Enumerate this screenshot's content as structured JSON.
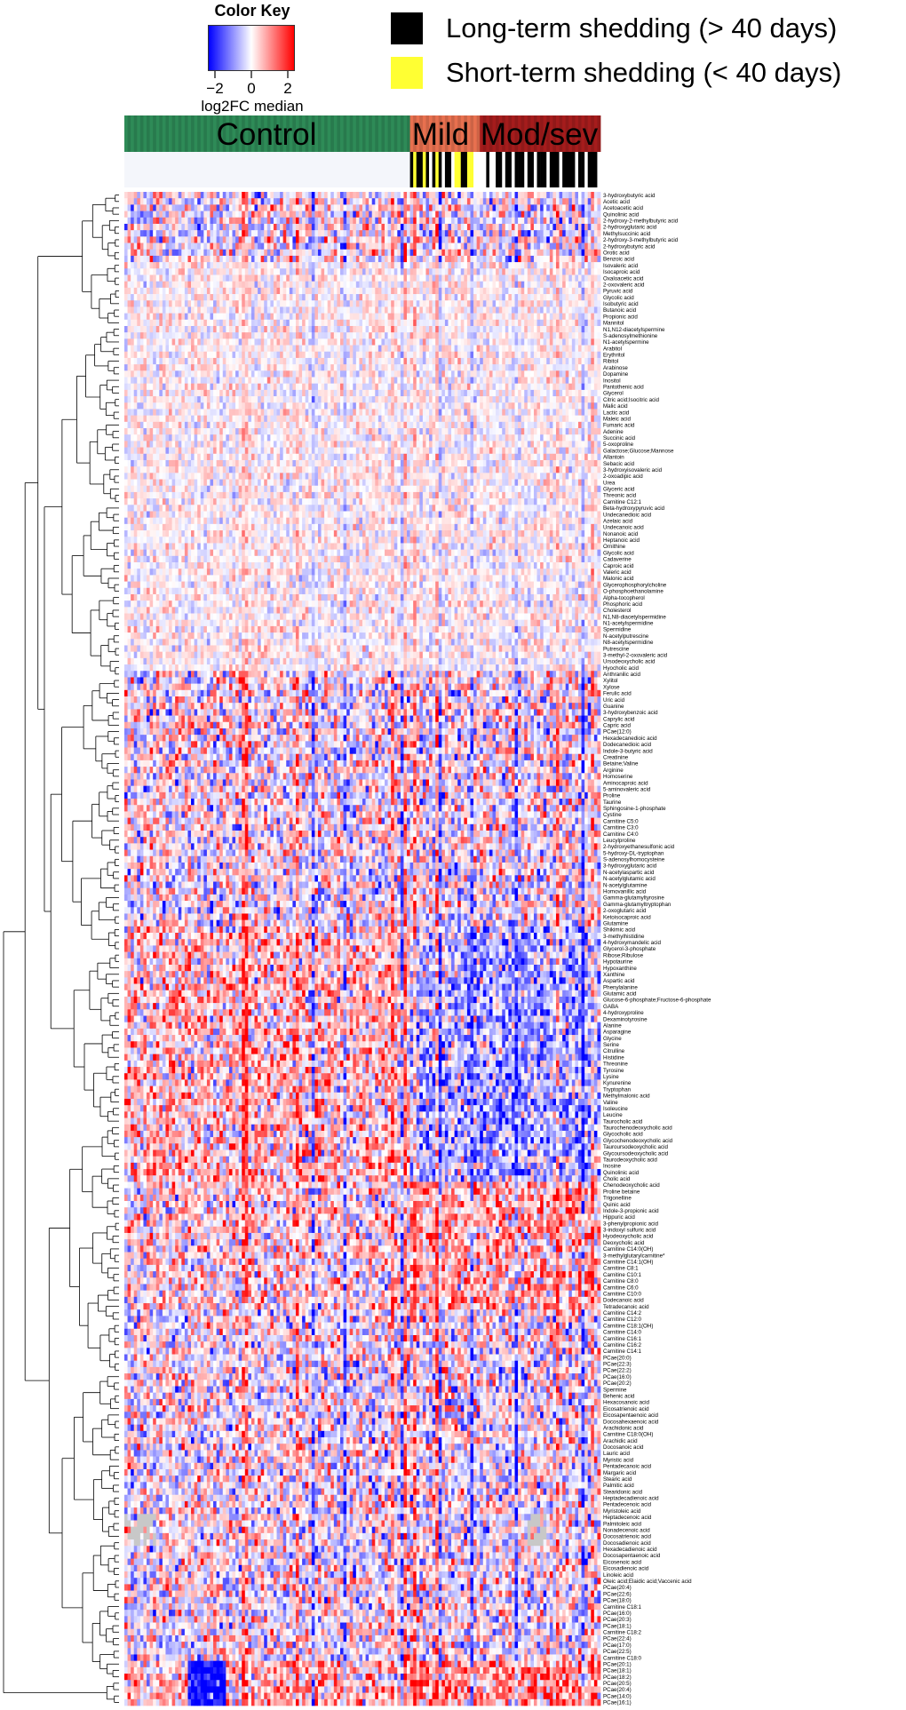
{
  "color_key": {
    "title": "Color Key",
    "ticks": [
      "−2",
      "0",
      "2"
    ],
    "label": "log2FC median",
    "low_color": "#0000ff",
    "mid_color": "#ffffff",
    "high_color": "#ff0000"
  },
  "legend": [
    {
      "label": "Long-term shedding (> 40 days)",
      "color": "#000000"
    },
    {
      "label": "Short-term shedding (< 40 days)",
      "color": "#ffff33"
    }
  ],
  "groups": [
    {
      "label": "Control",
      "color": "#2e8b57",
      "columns": 90
    },
    {
      "label": "Mild",
      "color": "#e8704f",
      "columns": 22
    },
    {
      "label": "Mod/sev",
      "color": "#a51c1c",
      "columns": 38
    }
  ],
  "chart_data": {
    "type": "heatmap",
    "color_scale": {
      "min": -2,
      "max": 2,
      "label": "log2FC median"
    },
    "columns_per_group": {
      "Control": 90,
      "Mild": 22,
      "Mod/sev": 38
    },
    "row_labels": [
      "3-hydroxybutyric acid",
      "Acetic acid",
      "Acetoacetic acid",
      "Quinolinic acid",
      "2-hydroxy-2-methylbutyric acid",
      "2-hydroxyglutaric acid",
      "Methylsuccinic acid",
      "2-hydroxy-3-methylbutyric acid",
      "2-hydroxybutyric acid",
      "Orotic acid",
      "Benzoic acid",
      "Isovaleric acid",
      "Isocaproic acid",
      "Oxaloacetic acid",
      "2-oxovaleric acid",
      "Pyruvic acid",
      "Glycolic acid",
      "Isobutyric acid",
      "Butanoic acid",
      "Propionic acid",
      "Mannitol",
      "N1,N12-diacetylspermine",
      "S-adenosylmethionine",
      "N1-acetylspermine",
      "Arabitol",
      "Erythritol",
      "Ribitol",
      "Arabinose",
      "Dopamine",
      "Inositol",
      "Pantothenic acid",
      "Glycerol",
      "Citric acid;Isocitric acid",
      "Malic acid",
      "Lactic acid",
      "Maleic acid",
      "Fumaric acid",
      "Adenine",
      "Succinic acid",
      "5-oxoproline",
      "Galactose;Glucose;Mannose",
      "Allantoin",
      "Sebacic acid",
      "3-hydroxyisovaleric acid",
      "2-oxoadipic acid",
      "Urea",
      "Glyceric acid",
      "Threonic acid",
      "Carnitine C12:1",
      "Beta-hydroxypyruvic acid",
      "Undecanedioic acid",
      "Azelaic acid",
      "Undecanoic acid",
      "Nonanoic acid",
      "Heptanoic acid",
      "Ornithine",
      "Glycolic acid",
      "Cadaverine",
      "Caproic acid",
      "Valeric acid",
      "Malonic acid",
      "Glycerophosphorylcholine",
      "O-phosphoethanolamine",
      "Alpha-tocopherol",
      "Phosphoric acid",
      "Cholesterol",
      "N1,N8-diacetylspermidine",
      "N1-acetylspermidine",
      "Spermidine",
      "N-acetylputrescine",
      "N8-acetylspermidine",
      "Putrescine",
      "3-methyl-2-oxovaleric acid",
      "Ursodeoxycholic acid",
      "Hyocholic acid",
      "Anthranilic acid",
      "Xylitol",
      "Xylose",
      "Ferulic acid",
      "Uric acid",
      "Guanine",
      "3-hydroxybenzoic acid",
      "Caprylic acid",
      "Capric acid",
      "PCae(12:0)",
      "Hexadecanedioic acid",
      "Dodecanedioic acid",
      "Indole-3-butyric acid",
      "Creatinine",
      "Betaine;Valine",
      "Arginine",
      "Homoserine",
      "Aminocaproic acid",
      "5-aminovaleric acid",
      "Proline",
      "Taurine",
      "Sphingosine-1-phosphate",
      "Cystine",
      "Carnitine C5:0",
      "Carnitine C3:0",
      "Carnitine C4:0",
      "Leucylproline",
      "2-hydroxyethanesulfonic acid",
      "5-hydroxy-DL-tryptophan",
      "S-adenosylhomocysteine",
      "3-hydroxyglutaric acid",
      "N-acetylaspartic acid",
      "N-acetylglutamic acid",
      "N-acetylglutamine",
      "Homovanillic acid",
      "Gamma-glutamyltyrosine",
      "Gamma-glutamyltryptophan",
      "2-oxoglutaric acid",
      "Ketoisocaproic acid",
      "Glutamine",
      "Shikimic acid",
      "3-methylhistidine",
      "4-hydroxymandelic acid",
      "Glycerol-3-phosphate",
      "Ribose;Ribulose",
      "Hypotaurine",
      "Hypoxanthine",
      "Xanthine",
      "Aspartic acid",
      "Phenylalanine",
      "Glutamic acid",
      "Glucose-6-phosphate;Fructose-6-phosphate",
      "GABA",
      "4-hydroxyproline",
      "Dexaminotyrosine",
      "Alanine",
      "Asparagine",
      "Glycine",
      "Serine",
      "Citrulline",
      "Histidine",
      "Threonine",
      "Tyrosine",
      "Lysine",
      "Kynurenine",
      "Tryptophan",
      "Methylmalonic acid",
      "Valine",
      "Isoleucine",
      "Leucine",
      "Taurocholic acid",
      "Taurochenodeoxycholic acid",
      "Glycocholic acid",
      "Glycochenodeoxycholic acid",
      "Tauroursodeoxycholic acid",
      "Glycoursodeoxycholic acid",
      "Taurodeoxycholic acid",
      "Inosine",
      "Quinolinic acid",
      "Cholic acid",
      "Chenodeoxycholic acid",
      "Proline betaine",
      "Trigonelline",
      "Quinic acid",
      "Indole-3-propionic acid",
      "Hippuric acid",
      "3-phenylpropionic acid",
      "3-indoxyl sulfuric acid",
      "Hyodeoxycholic acid",
      "Deoxycholic acid",
      "Carnitine C14:0(OH)",
      "3-methylglutarylcarnitine*",
      "Carnitine C14:1(OH)",
      "Carnitine C8:1",
      "Carnitine C10:1",
      "Carnitine C8:0",
      "Carnitine C6:0",
      "Carnitine C10:0",
      "Dodecanoic acid",
      "Tetradecanoic acid",
      "Carnitine C14:2",
      "Carnitine C12:0",
      "Carnitine C18:1(OH)",
      "Carnitine C14:0",
      "Carnitine C16:1",
      "Carnitine C16:2",
      "Carnitine C14:1",
      "PCae(20:0)",
      "PCae(22:3)",
      "PCae(22:2)",
      "PCae(16:0)",
      "PCae(20:2)",
      "Spermine",
      "Behenic acid",
      "Hexacosanoic acid",
      "Eicosatrienoic acid",
      "Eicosapentaenoic acid",
      "Docosahexaenoic acid",
      "Arachidonic acid",
      "Carnitine C18:0(OH)",
      "Arachidic acid",
      "Docosanoic acid",
      "Lauric acid",
      "Myristic acid",
      "Pentadecanoic acid",
      "Margaric acid",
      "Stearic acid",
      "Palmitic acid",
      "Stearidonic acid",
      "Heptadecadienoic acid",
      "Pentadecenoic acid",
      "Myristoleic acid",
      "Heptadecenoic acid",
      "Palmitoleic acid",
      "Nonadecenoic acid",
      "Docosatrienoic acid",
      "Docosadienoic acid",
      "Hexadecadienoic acid",
      "Docosapentaenoic acid",
      "Eicosenoic acid",
      "Eicosadienoic acid",
      "Linoleic acid",
      "Oleic acid;Elaidic acid;Vaccenic acid",
      "PCae(20:4)",
      "PCae(22:6)",
      "PCae(18:0)",
      "Carnitine C18:1",
      "PCae(16:0)",
      "PCae(20:3)",
      "PCae(18:1)",
      "Carnitine C18:2",
      "PCae(22:4)",
      "PCae(17:0)",
      "PCae(22:5)",
      "Carnitine C18:0",
      "PCae(20:1)",
      "PCae(18:1)",
      "PCae(18:2)",
      "PCae(20:5)",
      "PCae(20:4)",
      "PCae(14:0)",
      "PCae(16:1)"
    ],
    "column_shedding": {
      "Mild": [
        "black",
        "yellow",
        "black",
        "black",
        "yellow",
        "black",
        "white",
        "black",
        "yellow",
        "black",
        "white",
        "black",
        "black",
        "white",
        "yellow",
        "yellow",
        "black",
        "black",
        "yellow",
        "yellow",
        "white",
        "white"
      ],
      "Mod/sev": [
        "white",
        "white",
        "black",
        "white",
        "white",
        "black",
        "black",
        "white",
        "black",
        "black",
        "white",
        "black",
        "black",
        "black",
        "white",
        "black",
        "black",
        "white",
        "black",
        "black",
        "black",
        "white",
        "black",
        "black",
        "black",
        "white",
        "black",
        "black",
        "black",
        "black",
        "white",
        "black",
        "black",
        "white",
        "black",
        "black",
        "black",
        "white"
      ]
    }
  }
}
